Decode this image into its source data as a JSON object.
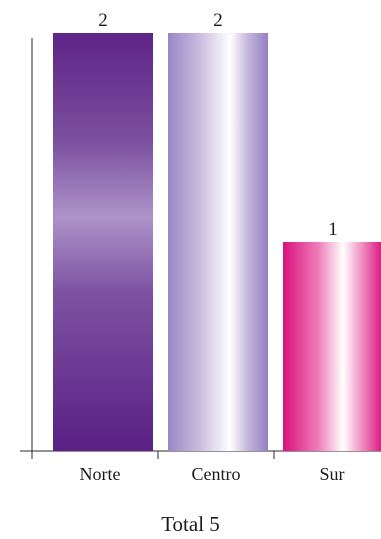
{
  "chart_data": {
    "type": "bar",
    "categories": [
      "Norte",
      "Centro",
      "Sur"
    ],
    "values": [
      2,
      2,
      1
    ],
    "ylim": [
      0,
      2
    ],
    "grid": false,
    "legend": "none",
    "data_labels": [
      "2",
      "2",
      "1"
    ],
    "colors": {
      "Norte": [
        "#5e2487",
        "#ad93c9",
        "#5e2487"
      ],
      "Centro": [
        "#9b86c6",
        "#ffffff",
        "#9b86c6"
      ],
      "Sur": [
        "#d8127d",
        "#ffffff",
        "#d8127d"
      ]
    }
  },
  "footer": {
    "total_label": "Total 5"
  }
}
